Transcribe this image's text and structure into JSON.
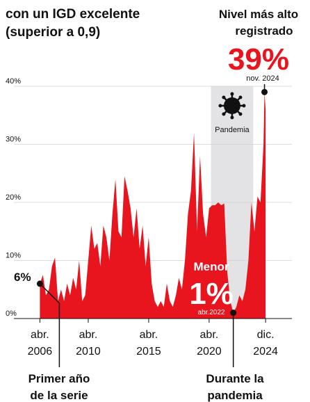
{
  "chart_data": {
    "type": "area",
    "title": [
      "con un IGD excelente",
      "(superior a 0,9)"
    ],
    "x": [
      2006.25,
      2006.5,
      2006.75,
      2007,
      2007.25,
      2007.5,
      2007.75,
      2008,
      2008.25,
      2008.5,
      2008.75,
      2009,
      2009.25,
      2009.5,
      2009.75,
      2010,
      2010.25,
      2010.5,
      2010.75,
      2011,
      2011.25,
      2011.5,
      2011.75,
      2012,
      2012.25,
      2012.5,
      2012.75,
      2013,
      2013.25,
      2013.5,
      2013.75,
      2014,
      2014.25,
      2014.5,
      2014.75,
      2015,
      2015.25,
      2015.5,
      2015.75,
      2016,
      2016.25,
      2016.5,
      2016.75,
      2017,
      2017.25,
      2017.5,
      2017.75,
      2018,
      2018.25,
      2018.5,
      2018.75,
      2019,
      2019.25,
      2019.5,
      2019.75,
      2020,
      2020.25,
      2020.5,
      2020.75,
      2021,
      2021.25,
      2021.5,
      2021.75,
      2022,
      2022.25,
      2022.5,
      2022.75,
      2023,
      2023.25,
      2023.5,
      2023.75,
      2024,
      2024.25,
      2024.5,
      2024.75,
      2024.83,
      2024.92
    ],
    "values": [
      6,
      7.5,
      4,
      5,
      9,
      10.5,
      3,
      5,
      3,
      6,
      4,
      7,
      5,
      10,
      3,
      4,
      10,
      16,
      12,
      13,
      9,
      16,
      14,
      10,
      18,
      24,
      15,
      14,
      24.5,
      22,
      19,
      14,
      19,
      12,
      16,
      9,
      14,
      6,
      3,
      2,
      3,
      2,
      6,
      3,
      2,
      4,
      7,
      5,
      10,
      18,
      22,
      32,
      15,
      28,
      18,
      14,
      19,
      19.5,
      19.5,
      20,
      19.5,
      19.8,
      8,
      3,
      1,
      2,
      4,
      3,
      5,
      10,
      20,
      15,
      21,
      20,
      30,
      39,
      36
    ],
    "color": "#e8141e",
    "xlim": [
      2004.1,
      2027.1
    ],
    "xticks": [
      {
        "value": 2006.25,
        "label": "abr. 2006"
      },
      {
        "value": 2010.25,
        "label": "abr. 2010"
      },
      {
        "value": 2015.25,
        "label": "abr. 2015"
      },
      {
        "value": 2020.25,
        "label": "abr. 2020"
      },
      {
        "value": 2024.92,
        "label": "dic. 2024"
      }
    ],
    "ylim": [
      0,
      40
    ],
    "yticks": [
      {
        "value": 0,
        "label": "0%"
      },
      {
        "value": 10,
        "label": "10%"
      },
      {
        "value": 20,
        "label": "20%"
      },
      {
        "value": 30,
        "label": "30%"
      },
      {
        "value": 40,
        "label": "40%"
      }
    ],
    "grid": true,
    "shade": {
      "x": [
        2020.4,
        2023.9
      ],
      "label": "Pandemia"
    },
    "annotations": {
      "max": {
        "heading": [
          "Nivel más alto",
          "registrado"
        ],
        "value": "39%",
        "date": "nov. 2024"
      },
      "min": {
        "heading": "Menor",
        "value": "1%",
        "date": "abr.2022"
      },
      "start": {
        "value": "6%"
      },
      "start_note": [
        "Primer año",
        "de la serie"
      ],
      "min_note": [
        "Durante la",
        "pandemia"
      ]
    }
  }
}
